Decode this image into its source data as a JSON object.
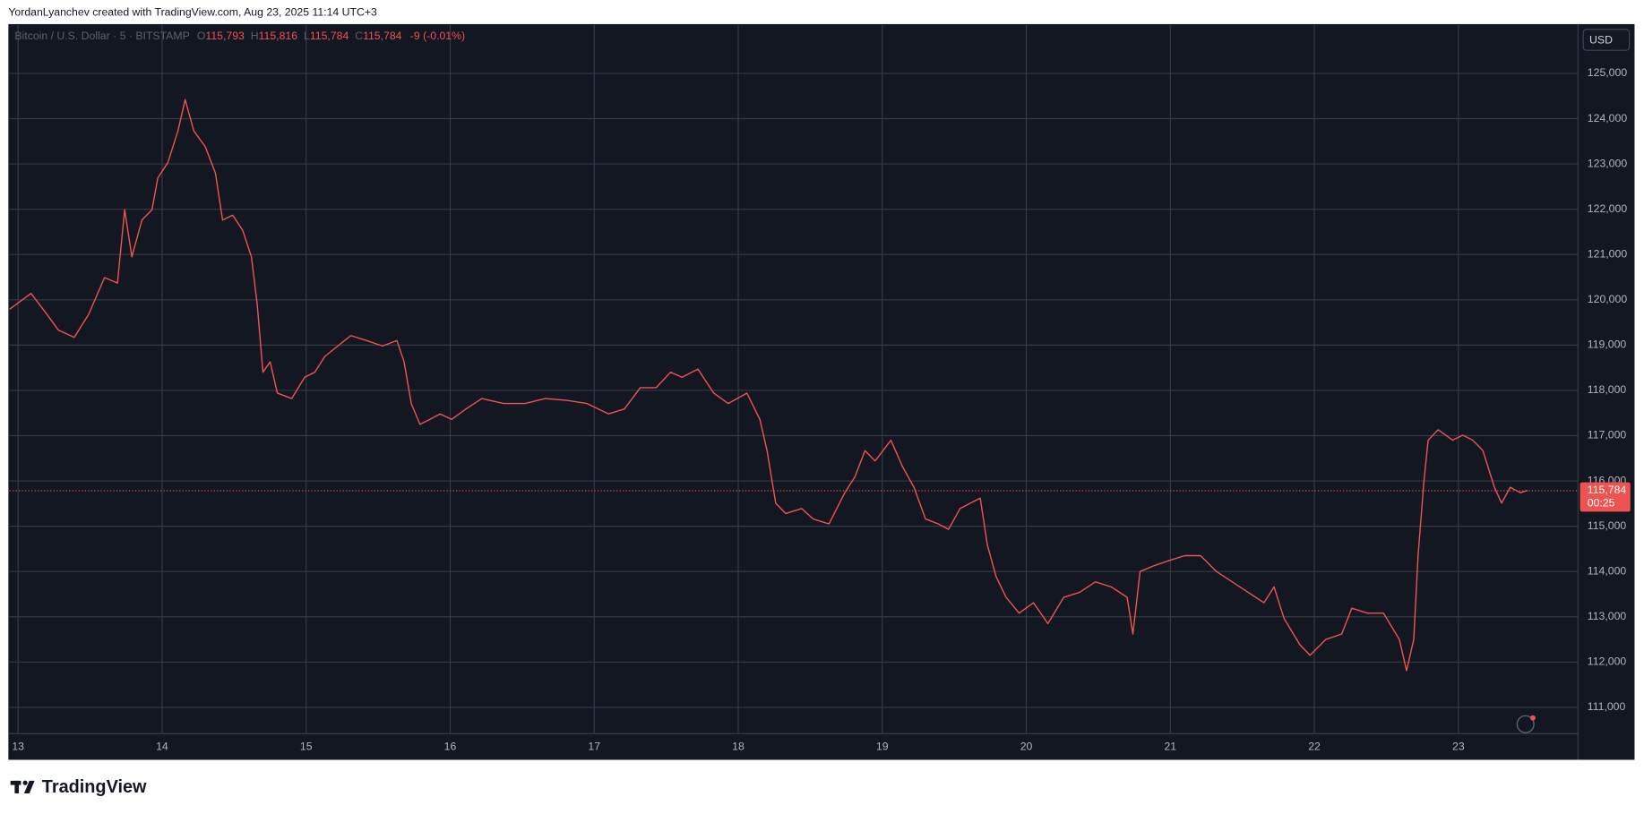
{
  "header": {
    "attribution": "YordanLyanchev created with TradingView.com, Aug 23, 2025 11:14 UTC+3"
  },
  "chart_data": {
    "type": "line",
    "symbol": "Bitcoin / U.S. Dollar · 5 · BITSTAMP",
    "ohlc_labels": [
      "O",
      "H",
      "L",
      "C"
    ],
    "ohlc": [
      "115,793",
      "115,816",
      "115,784",
      "115,784"
    ],
    "change": "-9 (-0.01%)",
    "currency": "USD",
    "color": "#ef5350",
    "x": [
      12.94,
      13.09,
      13.2,
      13.28,
      13.39,
      13.49,
      13.6,
      13.69,
      13.74,
      13.79,
      13.86,
      13.93,
      13.97,
      14.04,
      14.11,
      14.16,
      14.22,
      14.3,
      14.37,
      14.42,
      14.49,
      14.56,
      14.62,
      14.66,
      14.7,
      14.75,
      14.8,
      14.9,
      14.99,
      15.06,
      15.13,
      15.22,
      15.31,
      15.42,
      15.53,
      15.63,
      15.68,
      15.73,
      15.79,
      15.86,
      15.93,
      16.01,
      16.11,
      16.22,
      16.37,
      16.52,
      16.66,
      16.81,
      16.95,
      17.1,
      17.21,
      17.32,
      17.43,
      17.53,
      17.61,
      17.72,
      17.83,
      17.93,
      18.06,
      18.15,
      18.2,
      18.26,
      18.33,
      18.44,
      18.52,
      18.63,
      18.74,
      18.81,
      18.88,
      18.95,
      19.06,
      19.14,
      19.22,
      19.3,
      19.39,
      19.46,
      19.54,
      19.68,
      19.73,
      19.79,
      19.86,
      19.95,
      20.05,
      20.15,
      20.26,
      20.37,
      20.48,
      20.59,
      20.7,
      20.74,
      20.79,
      20.88,
      20.99,
      21.1,
      21.21,
      21.32,
      21.43,
      21.54,
      21.65,
      21.72,
      21.79,
      21.9,
      21.97,
      22.08,
      22.19,
      22.26,
      22.37,
      22.48,
      22.59,
      22.64,
      22.69,
      22.72,
      22.76,
      22.79,
      22.86,
      22.96,
      23.03,
      23.1,
      23.17,
      23.25,
      23.3,
      23.36,
      23.43,
      23.48
    ],
    "values": [
      119790,
      120140,
      119680,
      119330,
      119170,
      119680,
      120490,
      120370,
      121990,
      120950,
      121760,
      121990,
      122690,
      123030,
      123730,
      124420,
      123730,
      123380,
      122800,
      121760,
      121870,
      121530,
      120950,
      119910,
      118400,
      118630,
      117940,
      117820,
      118290,
      118400,
      118750,
      118980,
      119210,
      119100,
      118980,
      119100,
      118630,
      117710,
      117250,
      117360,
      117480,
      117360,
      117590,
      117820,
      117710,
      117710,
      117820,
      117780,
      117710,
      117480,
      117590,
      118060,
      118060,
      118400,
      118290,
      118470,
      117940,
      117710,
      117940,
      117360,
      116670,
      115510,
      115280,
      115390,
      115160,
      115050,
      115740,
      116090,
      116670,
      116440,
      116900,
      116320,
      115860,
      115160,
      115050,
      114930,
      115390,
      115620,
      114580,
      113890,
      113430,
      113080,
      113310,
      112850,
      113430,
      113540,
      113770,
      113660,
      113430,
      112620,
      114000,
      114120,
      114240,
      114350,
      114350,
      114000,
      113770,
      113540,
      113310,
      113660,
      112960,
      112380,
      112150,
      112500,
      112620,
      113190,
      113080,
      113080,
      112500,
      111810,
      112500,
      114350,
      115970,
      116900,
      117130,
      116900,
      117010,
      116900,
      116670,
      115860,
      115510,
      115860,
      115740,
      115790
    ],
    "last_price": 115784,
    "last_price_label": "115,784",
    "countdown": "00:25",
    "xlim": [
      12.94,
      23.83
    ],
    "xticks": [
      13,
      14,
      15,
      16,
      17,
      18,
      19,
      20,
      21,
      22,
      23
    ],
    "ylim": [
      110420,
      126065
    ],
    "yticks": [
      {
        "value": 111000,
        "label": "111,000"
      },
      {
        "value": 112000,
        "label": "112,000"
      },
      {
        "value": 113000,
        "label": "113,000"
      },
      {
        "value": 114000,
        "label": "114,000"
      },
      {
        "value": 115000,
        "label": "115,000"
      },
      {
        "value": 116000,
        "label": "116,000"
      },
      {
        "value": 117000,
        "label": "117,000"
      },
      {
        "value": 118000,
        "label": "118,000"
      },
      {
        "value": 119000,
        "label": "119,000"
      },
      {
        "value": 120000,
        "label": "120,000"
      },
      {
        "value": 121000,
        "label": "121,000"
      },
      {
        "value": 122000,
        "label": "122,000"
      },
      {
        "value": 123000,
        "label": "123,000"
      },
      {
        "value": 124000,
        "label": "124,000"
      },
      {
        "value": 125000,
        "label": "125,000"
      }
    ],
    "grid": true
  },
  "footer": {
    "brand": "TradingView"
  }
}
